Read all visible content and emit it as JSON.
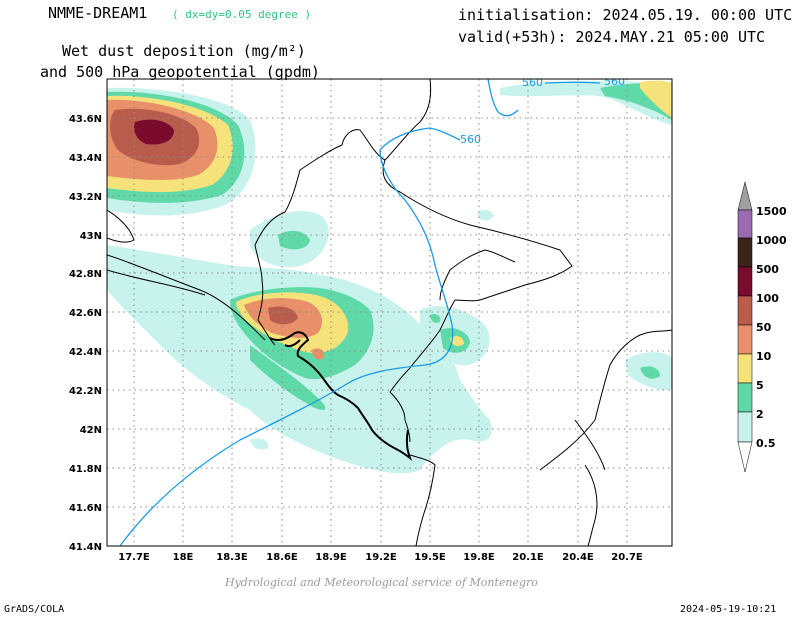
{
  "header": {
    "model": "NMME-DREAM1",
    "resolution": "( dx=dy=0.05 degree )",
    "variable_line1": "Wet dust deposition (mg/m²)",
    "variable_line2": "and 500 hPa geopotential (gpdm)",
    "initialisation": "initialisation: 2024.05.19. 00:00 UTC",
    "valid": "valid(+53h): 2024.MAY.21 05:00 UTC"
  },
  "map": {
    "lon_ticks": [
      "17.7E",
      "18E",
      "18.3E",
      "18.6E",
      "18.9E",
      "19.2E",
      "19.5E",
      "19.8E",
      "20.1E",
      "20.4E",
      "20.7E"
    ],
    "lat_ticks": [
      "43.6N",
      "43.4N",
      "43.2N",
      "43N",
      "42.8N",
      "42.6N",
      "42.4N",
      "42.2N",
      "42N",
      "41.8N",
      "41.6N",
      "41.4N"
    ],
    "contour_labels": [
      "560",
      "560",
      "560"
    ],
    "contour_color": "#1a9be6"
  },
  "legend": {
    "labels": [
      "1500",
      "1000",
      "500",
      "100",
      "50",
      "10",
      "5",
      "2",
      "0.5"
    ],
    "colors": [
      "#a0a0a0",
      "#9b6ab0",
      "#3b2418",
      "#7a0b2e",
      "#b85c4c",
      "#e8906a",
      "#f5e27a",
      "#5fd9a8",
      "#c8f2ec",
      "#ffffff"
    ]
  },
  "footer": {
    "credit": "Hydrological and Meteorological service of Montenegro",
    "software": "GrADS/COLA",
    "timestamp": "2024-05-19-10:21"
  }
}
